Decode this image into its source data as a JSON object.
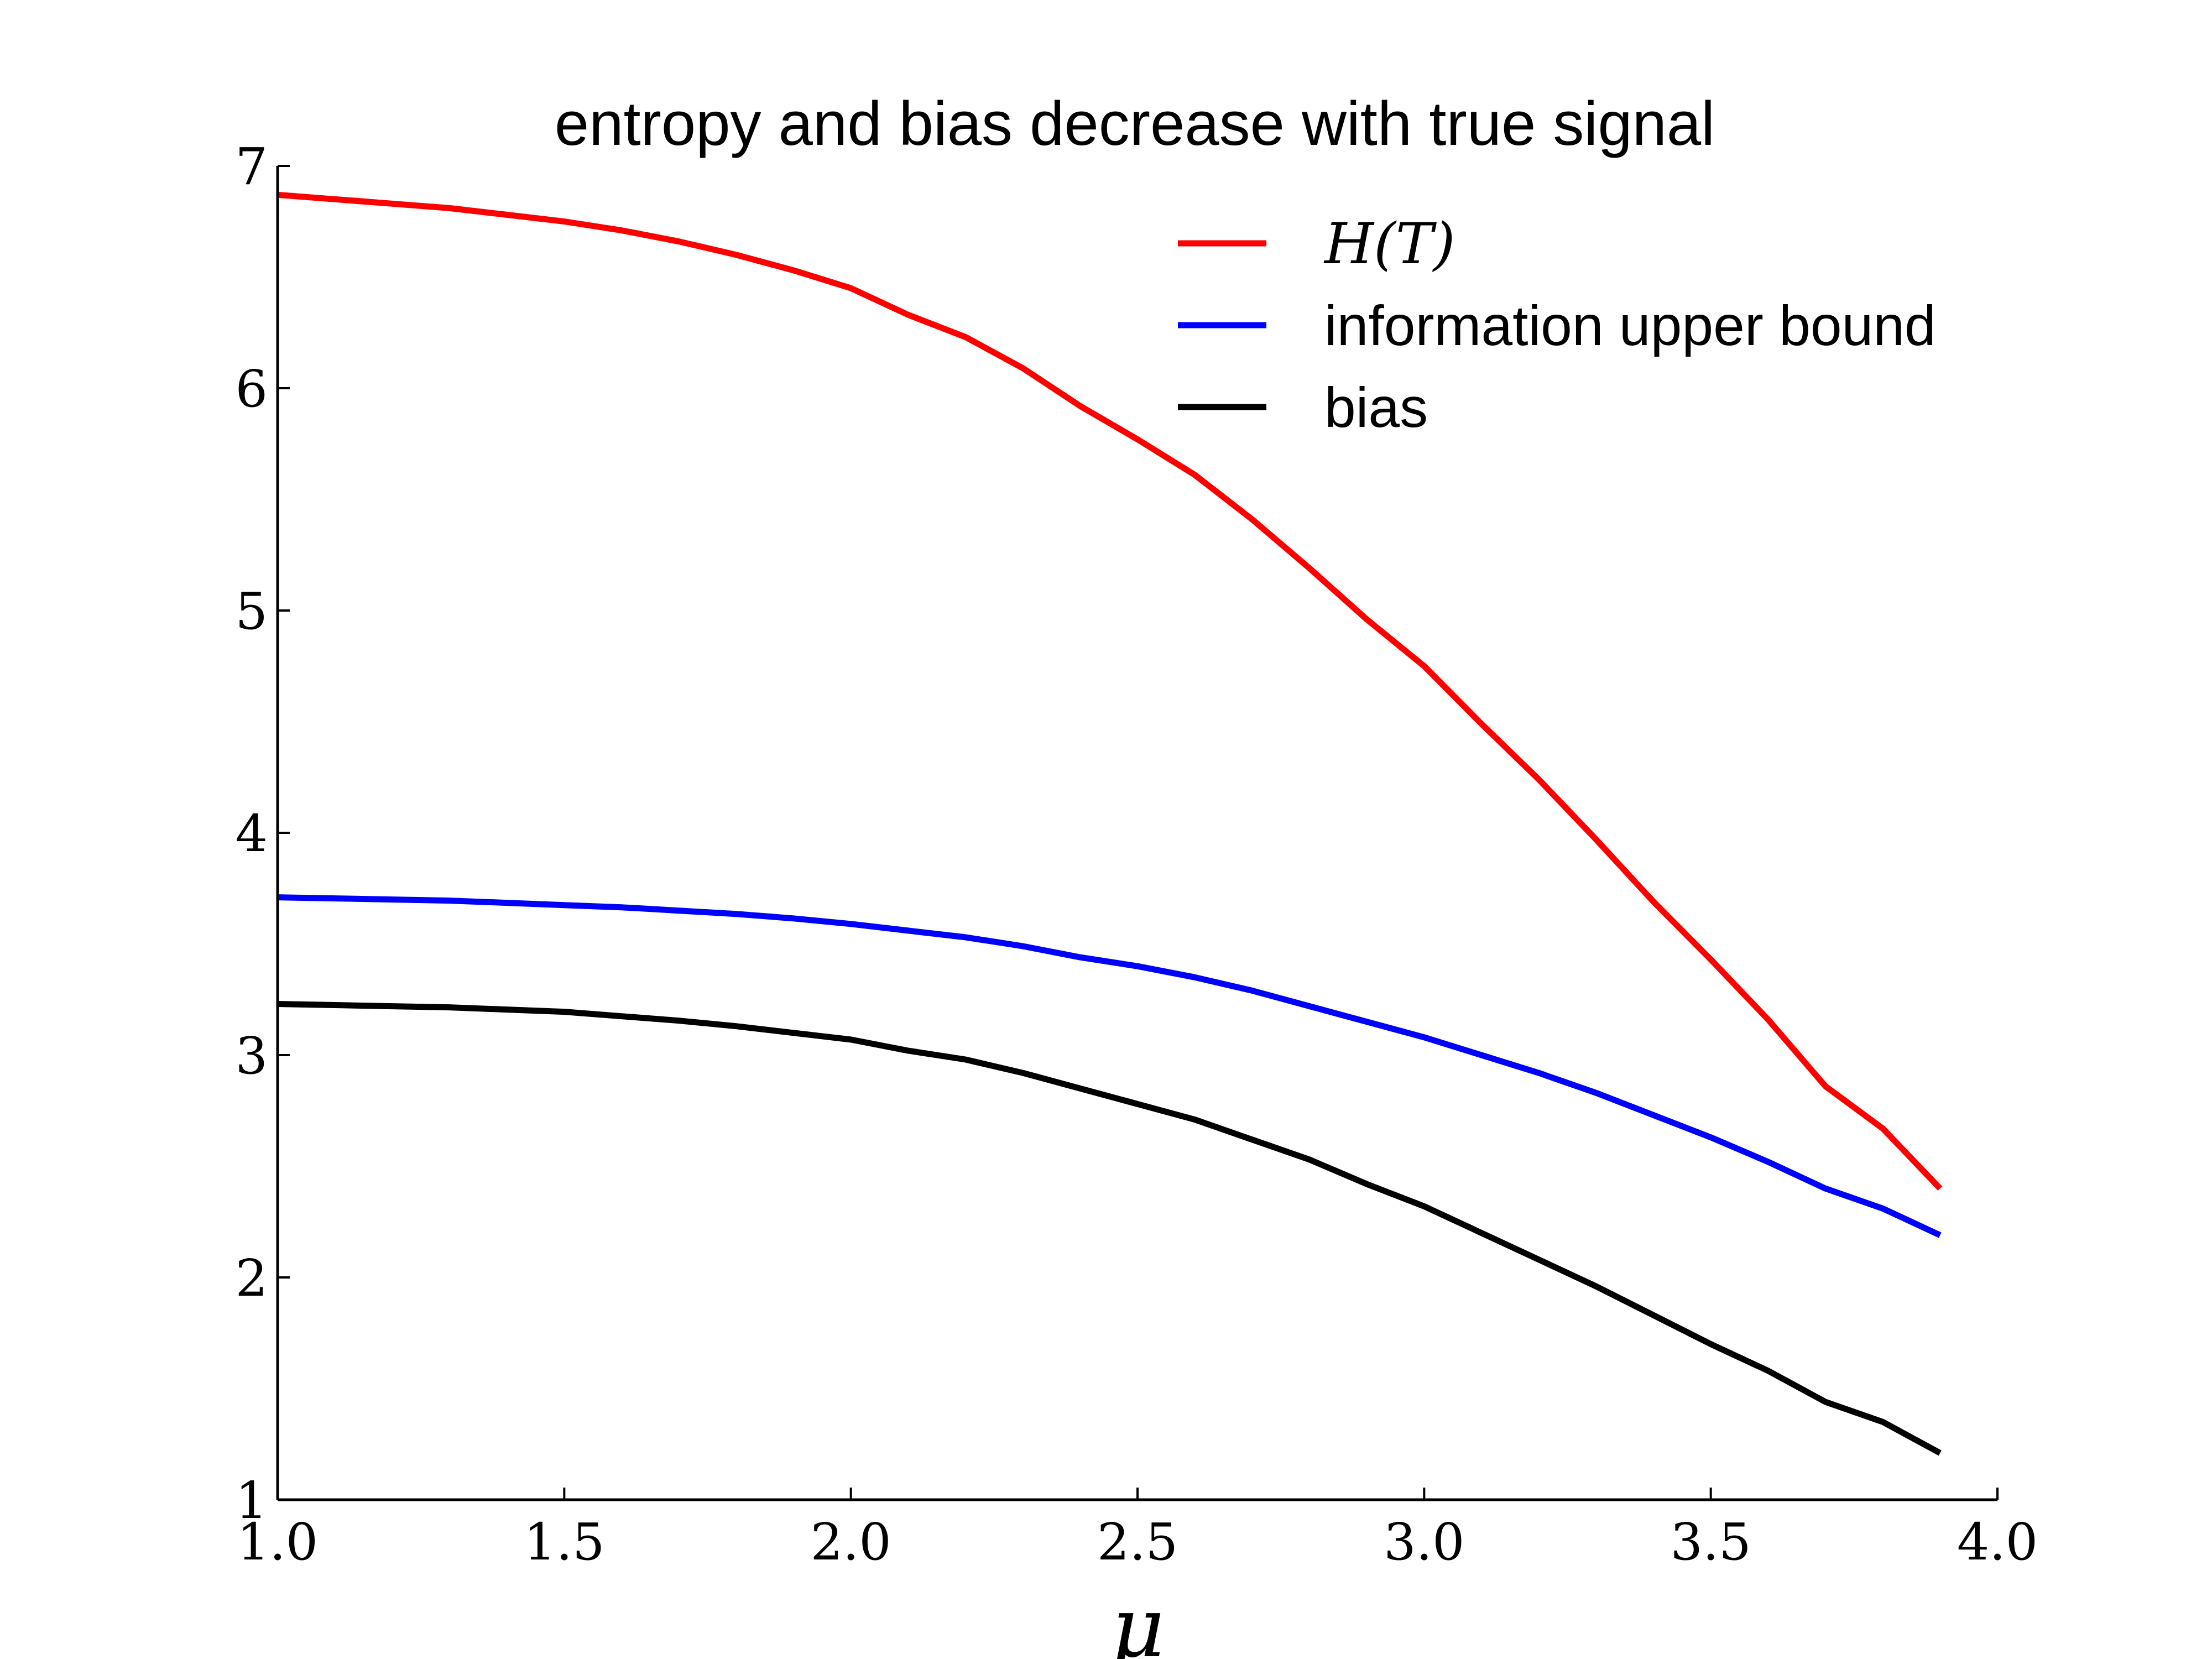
{
  "chart_data": {
    "type": "line",
    "title": "entropy and bias decrease with true signal",
    "xlabel": "μ",
    "ylabel": "",
    "xlim": [
      1.0,
      4.0
    ],
    "ylim": [
      1,
      7
    ],
    "xticks": [
      "1.0",
      "1.5",
      "2.0",
      "2.5",
      "3.0",
      "3.5",
      "4.0"
    ],
    "yticks": [
      "1",
      "2",
      "3",
      "4",
      "5",
      "6",
      "7"
    ],
    "grid": false,
    "legend_position": "top-right",
    "x": [
      1.0,
      1.1,
      1.2,
      1.3,
      1.4,
      1.5,
      1.6,
      1.7,
      1.8,
      1.9,
      2.0,
      2.1,
      2.2,
      2.3,
      2.4,
      2.5,
      2.6,
      2.7,
      2.8,
      2.9,
      3.0,
      3.1,
      3.2,
      3.3,
      3.4,
      3.5,
      3.6,
      3.7,
      3.8,
      3.9
    ],
    "series": [
      {
        "name": "H(T)",
        "color": "#ff0000",
        "values": [
          6.87,
          6.85,
          6.83,
          6.81,
          6.78,
          6.75,
          6.71,
          6.66,
          6.6,
          6.53,
          6.45,
          6.33,
          6.23,
          6.09,
          5.92,
          5.77,
          5.61,
          5.41,
          5.19,
          4.96,
          4.75,
          4.49,
          4.24,
          3.97,
          3.69,
          3.43,
          3.16,
          2.86,
          2.67,
          2.4
        ]
      },
      {
        "name": "information upper bound",
        "color": "#0000ff",
        "values": [
          3.71,
          3.705,
          3.7,
          3.695,
          3.685,
          3.675,
          3.665,
          3.65,
          3.635,
          3.615,
          3.59,
          3.56,
          3.53,
          3.49,
          3.44,
          3.4,
          3.35,
          3.29,
          3.22,
          3.15,
          3.08,
          3.0,
          2.92,
          2.83,
          2.73,
          2.63,
          2.52,
          2.4,
          2.31,
          2.19
        ]
      },
      {
        "name": "bias",
        "color": "#000000",
        "values": [
          3.23,
          3.225,
          3.22,
          3.215,
          3.205,
          3.195,
          3.175,
          3.155,
          3.13,
          3.1,
          3.07,
          3.02,
          2.98,
          2.92,
          2.85,
          2.78,
          2.71,
          2.62,
          2.53,
          2.42,
          2.32,
          2.2,
          2.08,
          1.96,
          1.83,
          1.7,
          1.58,
          1.44,
          1.35,
          1.21
        ]
      }
    ]
  }
}
